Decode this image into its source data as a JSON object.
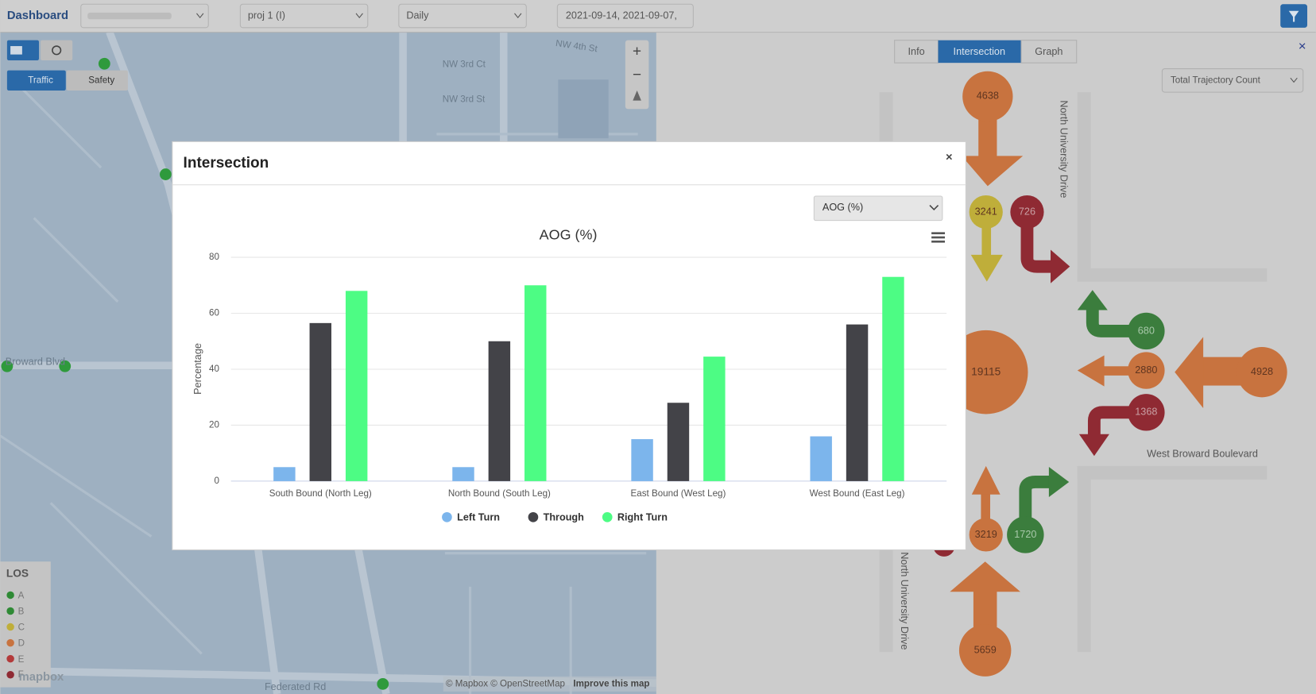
{
  "header": {
    "brand": "Dashboard",
    "project": "proj 1 (I)",
    "interval": "Daily",
    "dates": "2021-09-14, 2021-09-07,"
  },
  "map": {
    "modes": [
      "Traffic",
      "Safety"
    ],
    "zoom": [
      "+",
      "−"
    ],
    "streets": [
      "NW 4th St",
      "NW 3rd Ct",
      "NW 3rd St",
      "Broward Blvd",
      "Federated Rd"
    ],
    "legend": {
      "title": "LOS",
      "levels": [
        "A",
        "B",
        "C",
        "D",
        "E",
        "F"
      ]
    },
    "attribution": "© Mapbox © OpenStreetMap",
    "improve": "Improve this map",
    "logo": "mapbox"
  },
  "panel": {
    "tabs": [
      "Info",
      "Intersection",
      "Graph"
    ],
    "metric": "Total Trajectory Count",
    "close": "×",
    "streets": [
      "North University Drive",
      "West Broward Boulevard",
      "North University Drive"
    ],
    "counts": [
      4638,
      3241,
      726,
      680,
      2880,
      4928,
      1368,
      19115,
      3219,
      1720,
      5659
    ]
  },
  "modal": {
    "title": "Intersection",
    "close": "×",
    "selector": "AOG (%)",
    "chart": {
      "type": "bar",
      "title": "AOG (%)",
      "y_label": "Percentage",
      "categories": [
        "South Bound (North Leg)",
        "North Bound (South Leg)",
        "East Bound (West Leg)",
        "West Bound (East Leg)"
      ],
      "series": [
        {
          "name": "Left Turn",
          "color": "#7cb5ec",
          "values": [
            5,
            5,
            15,
            16
          ]
        },
        {
          "name": "Through",
          "color": "#434348",
          "values": [
            56.5,
            50,
            28,
            56
          ]
        },
        {
          "name": "Right Turn",
          "color": "#4dfc84",
          "values": [
            68,
            70,
            44.5,
            73
          ]
        }
      ],
      "ylim": [
        0,
        80
      ],
      "yticks": [
        0,
        20,
        40,
        60,
        80
      ],
      "grid": true,
      "legend": "bottom"
    }
  }
}
